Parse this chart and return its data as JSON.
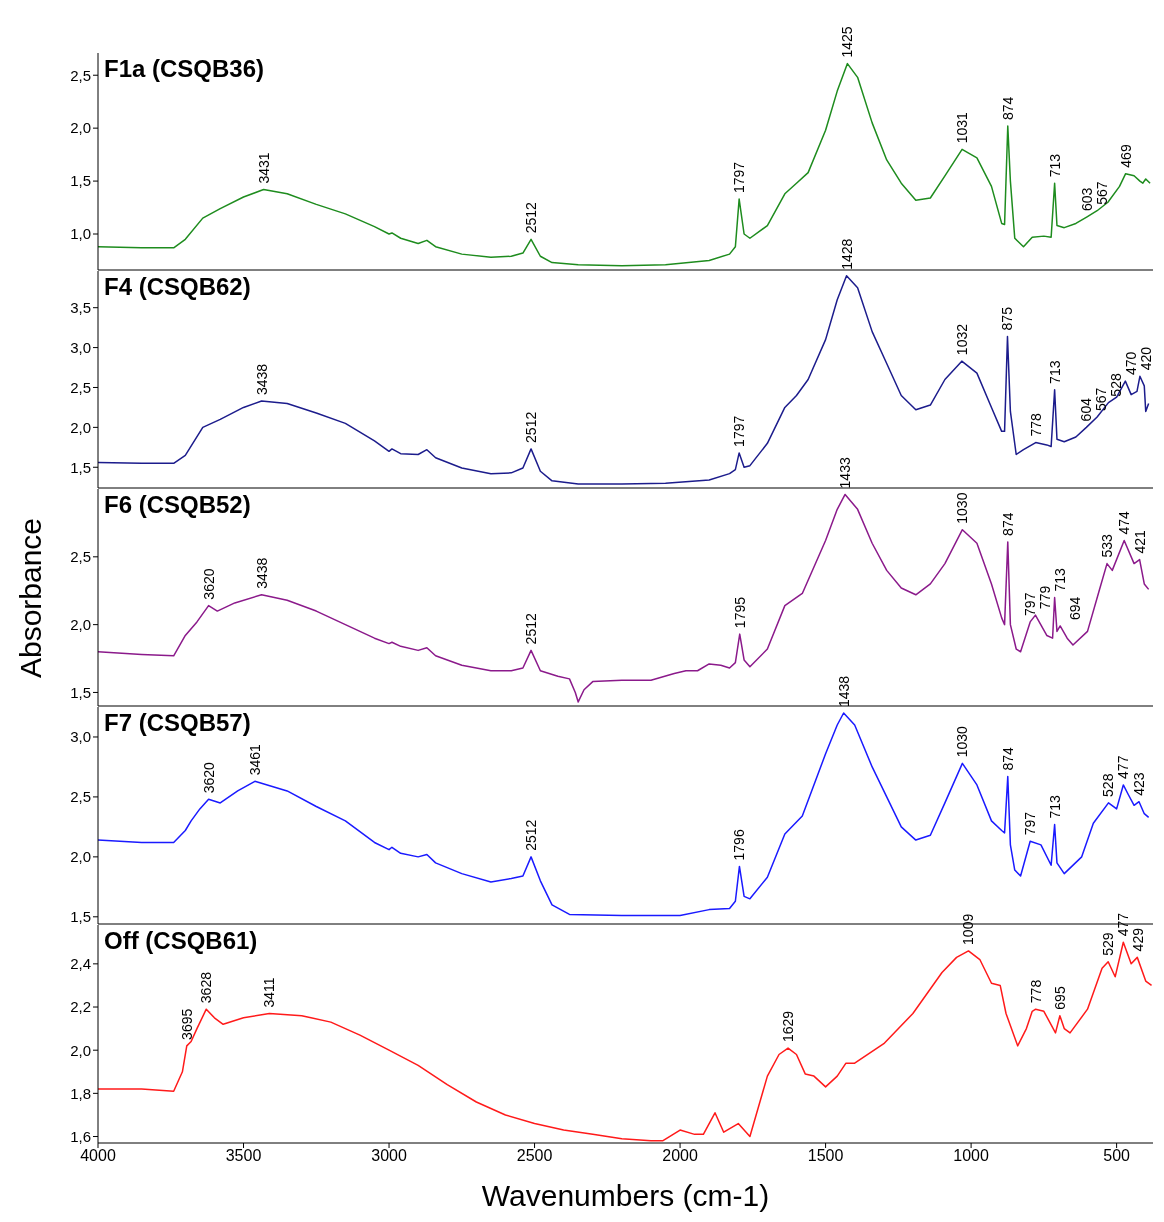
{
  "chart_data": [
    {
      "type": "line",
      "title": "F1a (CSQB36)",
      "tick_labels": "y",
      "grid": false,
      "legend": false,
      "xlim": [
        4000,
        375
      ],
      "xticks": [
        4000,
        3500,
        3000,
        2500,
        2000,
        1500,
        1000,
        500
      ],
      "ylim": [
        0.66,
        2.71
      ],
      "yticks": [
        {
          "value": 1.0,
          "label": "1,0"
        },
        {
          "value": 1.5,
          "label": "1,5"
        },
        {
          "value": 2.0,
          "label": "2,0"
        },
        {
          "value": 2.5,
          "label": "2,5"
        }
      ],
      "x": [
        4000,
        3850,
        3740,
        3700,
        3640,
        3580,
        3500,
        3431,
        3350,
        3250,
        3150,
        3050,
        3000,
        2990,
        2960,
        2900,
        2870,
        2840,
        2750,
        2650,
        2580,
        2540,
        2512,
        2480,
        2440,
        2350,
        2200,
        2050,
        1900,
        1830,
        1810,
        1797,
        1780,
        1760,
        1700,
        1640,
        1600,
        1560,
        1500,
        1460,
        1425,
        1390,
        1340,
        1290,
        1240,
        1190,
        1140,
        1090,
        1031,
        980,
        930,
        895,
        885,
        874,
        865,
        850,
        820,
        790,
        750,
        725,
        713,
        705,
        680,
        640,
        603,
        567,
        530,
        490,
        469,
        440,
        420,
        410,
        400,
        385
      ],
      "series": [
        {
          "color": "#1e8c1e",
          "values": [
            0.88,
            0.87,
            0.87,
            0.95,
            1.15,
            1.24,
            1.35,
            1.42,
            1.38,
            1.28,
            1.19,
            1.07,
            1.0,
            1.01,
            0.96,
            0.91,
            0.94,
            0.88,
            0.81,
            0.78,
            0.79,
            0.82,
            0.95,
            0.79,
            0.73,
            0.71,
            0.7,
            0.71,
            0.75,
            0.81,
            0.88,
            1.33,
            1.0,
            0.96,
            1.08,
            1.38,
            1.48,
            1.58,
            1.98,
            2.35,
            2.61,
            2.48,
            2.05,
            1.7,
            1.48,
            1.32,
            1.34,
            1.55,
            1.8,
            1.72,
            1.45,
            1.1,
            1.09,
            2.02,
            1.5,
            0.96,
            0.88,
            0.97,
            0.98,
            0.97,
            1.48,
            1.08,
            1.06,
            1.1,
            1.16,
            1.22,
            1.3,
            1.45,
            1.57,
            1.55,
            1.5,
            1.48,
            1.52,
            1.48
          ]
        }
      ],
      "annotations": [
        {
          "text": "3431",
          "x": 3431,
          "y": 1.42
        },
        {
          "text": "2512",
          "x": 2512,
          "y": 0.95
        },
        {
          "text": "1797",
          "x": 1797,
          "y": 1.33
        },
        {
          "text": "1425",
          "x": 1425,
          "y": 2.61
        },
        {
          "text": "1031",
          "x": 1031,
          "y": 1.8
        },
        {
          "text": "874",
          "x": 874,
          "y": 2.02
        },
        {
          "text": "713",
          "x": 713,
          "y": 1.48
        },
        {
          "text": "603",
          "x": 603,
          "y": 1.16
        },
        {
          "text": "567",
          "x": 567,
          "y": 1.22
        },
        {
          "text": "469",
          "x": 469,
          "y": 1.57
        }
      ]
    },
    {
      "type": "line",
      "title": "F4 (CSQB62)",
      "tick_labels": "y",
      "grid": false,
      "legend": false,
      "xlim": [
        4000,
        375
      ],
      "xticks": [
        4000,
        3500,
        3000,
        2500,
        2000,
        1500,
        1000,
        500
      ],
      "ylim": [
        1.24,
        3.96
      ],
      "yticks": [
        {
          "value": 1.5,
          "label": "1,5"
        },
        {
          "value": 2.0,
          "label": "2,0"
        },
        {
          "value": 2.5,
          "label": "2,5"
        },
        {
          "value": 3.0,
          "label": "3,0"
        },
        {
          "value": 3.5,
          "label": "3,5"
        }
      ],
      "x": [
        4000,
        3850,
        3740,
        3700,
        3640,
        3580,
        3500,
        3438,
        3350,
        3250,
        3150,
        3050,
        3000,
        2990,
        2960,
        2900,
        2870,
        2840,
        2750,
        2650,
        2580,
        2540,
        2512,
        2480,
        2440,
        2350,
        2200,
        2050,
        1900,
        1830,
        1810,
        1797,
        1780,
        1760,
        1700,
        1640,
        1600,
        1560,
        1500,
        1460,
        1428,
        1390,
        1340,
        1290,
        1240,
        1190,
        1140,
        1090,
        1032,
        980,
        930,
        895,
        885,
        875,
        865,
        845,
        820,
        778,
        740,
        725,
        713,
        705,
        680,
        640,
        604,
        567,
        528,
        500,
        470,
        450,
        430,
        420,
        405,
        400,
        390
      ],
      "series": [
        {
          "color": "#1c1c8c",
          "values": [
            1.56,
            1.55,
            1.55,
            1.65,
            2.0,
            2.1,
            2.25,
            2.33,
            2.3,
            2.18,
            2.05,
            1.83,
            1.7,
            1.73,
            1.67,
            1.66,
            1.72,
            1.62,
            1.49,
            1.42,
            1.43,
            1.49,
            1.73,
            1.45,
            1.33,
            1.29,
            1.29,
            1.3,
            1.34,
            1.42,
            1.47,
            1.68,
            1.5,
            1.52,
            1.8,
            2.25,
            2.4,
            2.6,
            3.1,
            3.6,
            3.9,
            3.75,
            3.2,
            2.8,
            2.4,
            2.22,
            2.28,
            2.6,
            2.83,
            2.68,
            2.25,
            1.95,
            1.95,
            3.14,
            2.2,
            1.66,
            1.72,
            1.81,
            1.78,
            1.76,
            2.47,
            1.85,
            1.82,
            1.88,
            2.0,
            2.13,
            2.31,
            2.38,
            2.58,
            2.41,
            2.45,
            2.64,
            2.52,
            2.2,
            2.3
          ]
        }
      ],
      "annotations": [
        {
          "text": "3438",
          "x": 3438,
          "y": 2.33
        },
        {
          "text": "2512",
          "x": 2512,
          "y": 1.73
        },
        {
          "text": "1797",
          "x": 1797,
          "y": 1.68
        },
        {
          "text": "1428",
          "x": 1428,
          "y": 3.9
        },
        {
          "text": "1032",
          "x": 1032,
          "y": 2.83
        },
        {
          "text": "875",
          "x": 875,
          "y": 3.14
        },
        {
          "text": "778",
          "x": 778,
          "y": 1.81
        },
        {
          "text": "713",
          "x": 713,
          "y": 2.47
        },
        {
          "text": "604",
          "x": 604,
          "y": 2.0
        },
        {
          "text": "567",
          "x": 567,
          "y": 2.13
        },
        {
          "text": "528",
          "x": 528,
          "y": 2.31
        },
        {
          "text": "470",
          "x": 470,
          "y": 2.58
        },
        {
          "text": "420",
          "x": 420,
          "y": 2.64
        }
      ]
    },
    {
      "type": "line",
      "title": "F6 (CSQB52)",
      "ylabel": "Absorbance",
      "tick_labels": "y",
      "grid": false,
      "legend": false,
      "xlim": [
        4000,
        375
      ],
      "xticks": [
        4000,
        3500,
        3000,
        2500,
        2000,
        1500,
        1000,
        500
      ],
      "ylim": [
        1.4,
        3.0
      ],
      "yticks": [
        {
          "value": 1.5,
          "label": "1,5"
        },
        {
          "value": 2.0,
          "label": "2,0"
        },
        {
          "value": 2.5,
          "label": "2,5"
        }
      ],
      "x": [
        4000,
        3850,
        3740,
        3700,
        3660,
        3620,
        3590,
        3530,
        3438,
        3350,
        3250,
        3150,
        3050,
        3000,
        2990,
        2960,
        2900,
        2870,
        2840,
        2750,
        2650,
        2580,
        2540,
        2512,
        2480,
        2420,
        2380,
        2360,
        2350,
        2330,
        2300,
        2200,
        2100,
        2020,
        1980,
        1940,
        1900,
        1860,
        1830,
        1810,
        1795,
        1780,
        1760,
        1700,
        1640,
        1580,
        1500,
        1460,
        1433,
        1390,
        1340,
        1290,
        1240,
        1190,
        1140,
        1090,
        1030,
        980,
        930,
        895,
        885,
        874,
        865,
        845,
        830,
        797,
        779,
        740,
        720,
        713,
        705,
        694,
        670,
        650,
        600,
        560,
        533,
        515,
        474,
        440,
        421,
        405,
        390
      ],
      "series": [
        {
          "color": "#8b1a8b",
          "values": [
            1.8,
            1.78,
            1.77,
            1.92,
            2.02,
            2.14,
            2.1,
            2.16,
            2.22,
            2.18,
            2.1,
            2.0,
            1.9,
            1.86,
            1.87,
            1.84,
            1.81,
            1.83,
            1.77,
            1.7,
            1.66,
            1.66,
            1.68,
            1.81,
            1.66,
            1.62,
            1.6,
            1.5,
            1.43,
            1.52,
            1.58,
            1.59,
            1.59,
            1.64,
            1.66,
            1.66,
            1.71,
            1.7,
            1.68,
            1.72,
            1.93,
            1.74,
            1.69,
            1.82,
            2.14,
            2.23,
            2.62,
            2.85,
            2.96,
            2.85,
            2.6,
            2.4,
            2.27,
            2.22,
            2.3,
            2.45,
            2.7,
            2.6,
            2.3,
            2.05,
            2.0,
            2.61,
            2.0,
            1.82,
            1.8,
            2.02,
            2.07,
            1.92,
            1.9,
            2.2,
            1.95,
            1.99,
            1.9,
            1.85,
            1.95,
            2.25,
            2.45,
            2.4,
            2.62,
            2.45,
            2.48,
            2.3,
            2.26
          ]
        }
      ],
      "annotations": [
        {
          "text": "3620",
          "x": 3620,
          "y": 2.14
        },
        {
          "text": "3438",
          "x": 3438,
          "y": 2.22
        },
        {
          "text": "2512",
          "x": 2512,
          "y": 1.81
        },
        {
          "text": "1795",
          "x": 1795,
          "y": 1.93
        },
        {
          "text": "1433",
          "x": 1433,
          "y": 2.96
        },
        {
          "text": "1030",
          "x": 1030,
          "y": 2.7
        },
        {
          "text": "874",
          "x": 874,
          "y": 2.61
        },
        {
          "text": "797",
          "x": 797,
          "y": 2.02
        },
        {
          "text": "779",
          "x": 779,
          "y": 2.07
        },
        {
          "text": "713",
          "x": 713,
          "y": 2.2
        },
        {
          "text": "694",
          "x": 694,
          "y": 1.99
        },
        {
          "text": "533",
          "x": 533,
          "y": 2.45
        },
        {
          "text": "474",
          "x": 474,
          "y": 2.62
        },
        {
          "text": "421",
          "x": 421,
          "y": 2.48
        }
      ]
    },
    {
      "type": "line",
      "title": "F7 (CSQB57)",
      "tick_labels": "y",
      "grid": false,
      "legend": false,
      "xlim": [
        4000,
        375
      ],
      "xticks": [
        4000,
        3500,
        3000,
        2500,
        2000,
        1500,
        1000,
        500
      ],
      "ylim": [
        1.44,
        3.25
      ],
      "yticks": [
        {
          "value": 1.5,
          "label": "1,5"
        },
        {
          "value": 2.0,
          "label": "2,0"
        },
        {
          "value": 2.5,
          "label": "2,5"
        },
        {
          "value": 3.0,
          "label": "3,0"
        }
      ],
      "x": [
        4000,
        3850,
        3740,
        3700,
        3680,
        3650,
        3620,
        3580,
        3520,
        3461,
        3350,
        3250,
        3150,
        3050,
        3000,
        2990,
        2960,
        2900,
        2870,
        2840,
        2750,
        2650,
        2580,
        2540,
        2512,
        2480,
        2440,
        2380,
        2200,
        2000,
        1900,
        1830,
        1810,
        1796,
        1780,
        1760,
        1700,
        1640,
        1580,
        1500,
        1460,
        1438,
        1400,
        1340,
        1290,
        1240,
        1190,
        1140,
        1090,
        1030,
        980,
        930,
        895,
        885,
        874,
        865,
        850,
        830,
        797,
        760,
        725,
        713,
        705,
        680,
        620,
        580,
        528,
        500,
        477,
        460,
        440,
        423,
        405,
        390
      ],
      "series": [
        {
          "color": "#1a1aff",
          "values": [
            2.14,
            2.12,
            2.12,
            2.22,
            2.3,
            2.4,
            2.48,
            2.45,
            2.55,
            2.63,
            2.55,
            2.42,
            2.3,
            2.12,
            2.06,
            2.08,
            2.03,
            2.0,
            2.02,
            1.95,
            1.86,
            1.79,
            1.82,
            1.84,
            2.0,
            1.8,
            1.6,
            1.52,
            1.51,
            1.51,
            1.56,
            1.57,
            1.63,
            1.92,
            1.67,
            1.65,
            1.83,
            2.19,
            2.34,
            2.86,
            3.1,
            3.2,
            3.1,
            2.75,
            2.5,
            2.25,
            2.14,
            2.18,
            2.45,
            2.78,
            2.6,
            2.3,
            2.22,
            2.2,
            2.67,
            2.1,
            1.89,
            1.84,
            2.13,
            2.1,
            1.93,
            2.27,
            1.95,
            1.86,
            2.0,
            2.28,
            2.45,
            2.4,
            2.6,
            2.52,
            2.43,
            2.46,
            2.36,
            2.33
          ]
        }
      ],
      "annotations": [
        {
          "text": "3620",
          "x": 3620,
          "y": 2.48
        },
        {
          "text": "3461",
          "x": 3461,
          "y": 2.63
        },
        {
          "text": "2512",
          "x": 2512,
          "y": 2.0
        },
        {
          "text": "1796",
          "x": 1796,
          "y": 1.92
        },
        {
          "text": "1438",
          "x": 1438,
          "y": 3.2
        },
        {
          "text": "1030",
          "x": 1030,
          "y": 2.78
        },
        {
          "text": "874",
          "x": 874,
          "y": 2.67
        },
        {
          "text": "797",
          "x": 797,
          "y": 2.13
        },
        {
          "text": "713",
          "x": 713,
          "y": 2.27
        },
        {
          "text": "528",
          "x": 528,
          "y": 2.45
        },
        {
          "text": "477",
          "x": 477,
          "y": 2.6
        },
        {
          "text": "423",
          "x": 423,
          "y": 2.46
        }
      ]
    },
    {
      "type": "line",
      "title": "Off (CSQB61)",
      "xlabel": "Wavenumbers (cm-1)",
      "grid": false,
      "legend": false,
      "xlim": [
        4000,
        375
      ],
      "xticks": [
        4000,
        3500,
        3000,
        2500,
        2000,
        1500,
        1000,
        500
      ],
      "ylim": [
        1.57,
        2.58
      ],
      "yticks": [
        {
          "value": 1.6,
          "label": "1,6"
        },
        {
          "value": 1.8,
          "label": "1,8"
        },
        {
          "value": 2.0,
          "label": "2,0"
        },
        {
          "value": 2.2,
          "label": "2,2"
        },
        {
          "value": 2.4,
          "label": "2,4"
        }
      ],
      "x": [
        4000,
        3850,
        3740,
        3710,
        3695,
        3680,
        3660,
        3628,
        3600,
        3570,
        3500,
        3411,
        3300,
        3200,
        3100,
        3000,
        2900,
        2800,
        2700,
        2600,
        2500,
        2400,
        2300,
        2200,
        2100,
        2060,
        2000,
        1950,
        1920,
        1880,
        1850,
        1800,
        1760,
        1700,
        1660,
        1629,
        1600,
        1570,
        1540,
        1500,
        1460,
        1430,
        1400,
        1300,
        1200,
        1100,
        1050,
        1009,
        970,
        930,
        900,
        880,
        840,
        810,
        790,
        778,
        750,
        710,
        695,
        680,
        660,
        600,
        550,
        529,
        505,
        477,
        450,
        429,
        400,
        380
      ],
      "series": [
        {
          "color": "#ff1a1a",
          "values": [
            1.82,
            1.82,
            1.81,
            1.9,
            2.02,
            2.04,
            2.1,
            2.19,
            2.15,
            2.12,
            2.15,
            2.17,
            2.16,
            2.13,
            2.07,
            2.0,
            1.93,
            1.84,
            1.76,
            1.7,
            1.66,
            1.63,
            1.61,
            1.59,
            1.58,
            1.58,
            1.63,
            1.61,
            1.61,
            1.71,
            1.62,
            1.66,
            1.6,
            1.88,
            1.98,
            2.01,
            1.98,
            1.89,
            1.88,
            1.83,
            1.88,
            1.94,
            1.94,
            2.03,
            2.17,
            2.36,
            2.43,
            2.46,
            2.42,
            2.31,
            2.3,
            2.17,
            2.02,
            2.1,
            2.18,
            2.19,
            2.18,
            2.08,
            2.16,
            2.1,
            2.08,
            2.19,
            2.38,
            2.41,
            2.34,
            2.5,
            2.4,
            2.43,
            2.32,
            2.3
          ]
        }
      ],
      "annotations": [
        {
          "text": "3695",
          "x": 3695,
          "y": 2.02
        },
        {
          "text": "3628",
          "x": 3628,
          "y": 2.19
        },
        {
          "text": "3411",
          "x": 3411,
          "y": 2.17
        },
        {
          "text": "1629",
          "x": 1629,
          "y": 2.01
        },
        {
          "text": "1009",
          "x": 1009,
          "y": 2.46
        },
        {
          "text": "778",
          "x": 778,
          "y": 2.19
        },
        {
          "text": "695",
          "x": 695,
          "y": 2.16
        },
        {
          "text": "529",
          "x": 529,
          "y": 2.41
        },
        {
          "text": "477",
          "x": 477,
          "y": 2.5
        },
        {
          "text": "429",
          "x": 429,
          "y": 2.43
        }
      ]
    }
  ]
}
